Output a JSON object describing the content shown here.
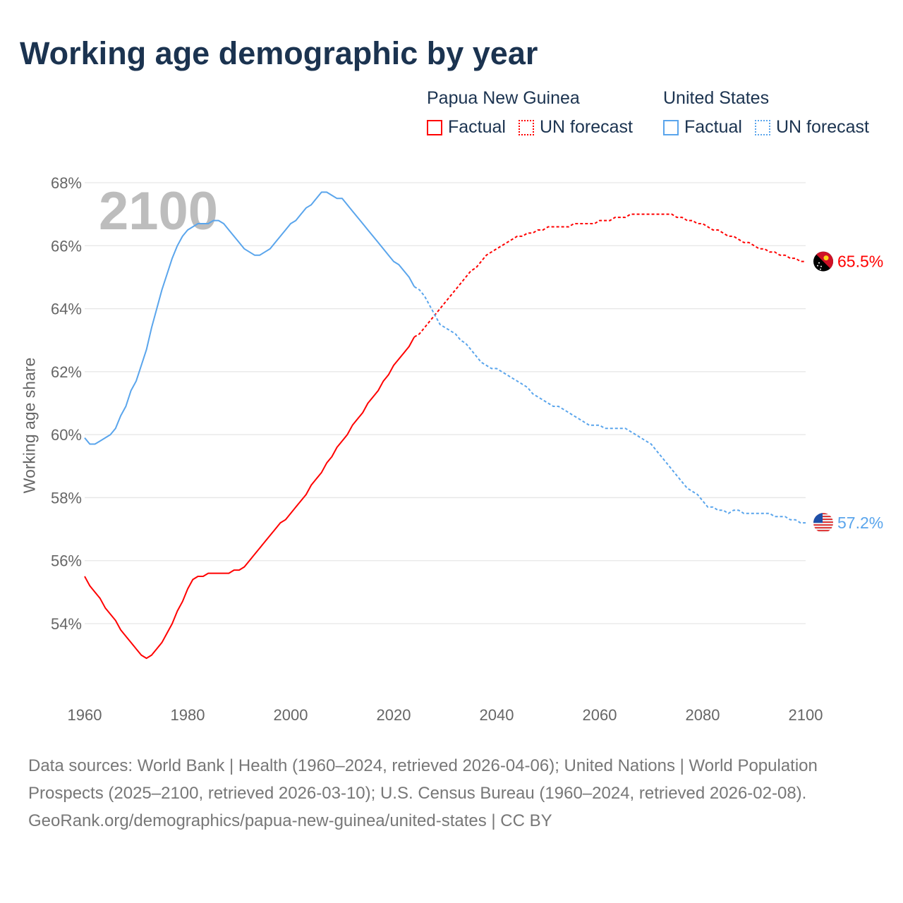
{
  "title": "Working age demographic by year",
  "legend": {
    "groups": [
      {
        "country": "Papua New Guinea",
        "factual": "Factual",
        "forecast": "UN forecast",
        "color": "#ff0000"
      },
      {
        "country": "United States",
        "factual": "Factual",
        "forecast": "UN forecast",
        "color": "#5aa5ec"
      }
    ]
  },
  "chart_data": {
    "type": "line",
    "title": "Working age demographic by year",
    "xlabel": "",
    "ylabel": "Working age share",
    "year_watermark": "2100",
    "xlim": [
      1960,
      2100
    ],
    "ylim": [
      52,
      68
    ],
    "x_ticks": [
      "1960",
      "1980",
      "2000",
      "2020",
      "2040",
      "2060",
      "2080",
      "2100"
    ],
    "y_ticks": [
      "54%",
      "56%",
      "58%",
      "60%",
      "62%",
      "64%",
      "66%",
      "68%"
    ],
    "y_tick_values": [
      54,
      56,
      58,
      60,
      62,
      64,
      66,
      68
    ],
    "grid": true,
    "series": [
      {
        "name": "Papua New Guinea",
        "type": "factual",
        "start_year": 1960,
        "color": "#ff0000",
        "values": [
          55.5,
          55.2,
          55.0,
          54.8,
          54.5,
          54.3,
          54.1,
          53.8,
          53.6,
          53.4,
          53.2,
          53.0,
          52.9,
          53.0,
          53.2,
          53.4,
          53.7,
          54.0,
          54.4,
          54.7,
          55.1,
          55.4,
          55.5,
          55.5,
          55.6,
          55.6,
          55.6,
          55.6,
          55.6,
          55.7,
          55.7,
          55.8,
          56.0,
          56.2,
          56.4,
          56.6,
          56.8,
          57.0,
          57.2,
          57.3,
          57.5,
          57.7,
          57.9,
          58.1,
          58.4,
          58.6,
          58.8,
          59.1,
          59.3,
          59.6,
          59.8,
          60.0,
          60.3,
          60.5,
          60.7,
          61.0,
          61.2,
          61.4,
          61.7,
          61.9,
          62.2,
          62.4,
          62.6,
          62.8,
          63.1
        ]
      },
      {
        "name": "Papua New Guinea",
        "type": "UN forecast",
        "start_year": 2025,
        "color": "#ff0000",
        "values": [
          63.2,
          63.4,
          63.6,
          63.8,
          64.0,
          64.2,
          64.4,
          64.6,
          64.8,
          65.0,
          65.2,
          65.3,
          65.5,
          65.7,
          65.8,
          65.9,
          66.0,
          66.1,
          66.2,
          66.3,
          66.3,
          66.4,
          66.4,
          66.5,
          66.5,
          66.6,
          66.6,
          66.6,
          66.6,
          66.6,
          66.7,
          66.7,
          66.7,
          66.7,
          66.7,
          66.8,
          66.8,
          66.8,
          66.9,
          66.9,
          66.9,
          67.0,
          67.0,
          67.0,
          67.0,
          67.0,
          67.0,
          67.0,
          67.0,
          67.0,
          66.9,
          66.9,
          66.8,
          66.8,
          66.7,
          66.7,
          66.6,
          66.5,
          66.5,
          66.4,
          66.3,
          66.3,
          66.2,
          66.1,
          66.1,
          66.0,
          65.9,
          65.9,
          65.8,
          65.8,
          65.7,
          65.7,
          65.6,
          65.6,
          65.5,
          65.5
        ]
      },
      {
        "name": "United States",
        "type": "factual",
        "start_year": 1960,
        "color": "#5aa5ec",
        "values": [
          59.9,
          59.7,
          59.7,
          59.8,
          59.9,
          60.0,
          60.2,
          60.6,
          60.9,
          61.4,
          61.7,
          62.2,
          62.7,
          63.4,
          64.0,
          64.6,
          65.1,
          65.6,
          66.0,
          66.3,
          66.5,
          66.6,
          66.7,
          66.7,
          66.7,
          66.8,
          66.8,
          66.7,
          66.5,
          66.3,
          66.1,
          65.9,
          65.8,
          65.7,
          65.7,
          65.8,
          65.9,
          66.1,
          66.3,
          66.5,
          66.7,
          66.8,
          67.0,
          67.2,
          67.3,
          67.5,
          67.7,
          67.7,
          67.6,
          67.5,
          67.5,
          67.3,
          67.1,
          66.9,
          66.7,
          66.5,
          66.3,
          66.1,
          65.9,
          65.7,
          65.5,
          65.4,
          65.2,
          65.0,
          64.7
        ]
      },
      {
        "name": "United States",
        "type": "UN forecast",
        "start_year": 2025,
        "color": "#5aa5ec",
        "values": [
          64.6,
          64.4,
          64.1,
          63.8,
          63.5,
          63.4,
          63.3,
          63.2,
          63.0,
          62.9,
          62.7,
          62.5,
          62.3,
          62.2,
          62.1,
          62.1,
          62.0,
          61.9,
          61.8,
          61.7,
          61.6,
          61.5,
          61.3,
          61.2,
          61.1,
          61.0,
          60.9,
          60.9,
          60.8,
          60.7,
          60.6,
          60.5,
          60.4,
          60.3,
          60.3,
          60.3,
          60.2,
          60.2,
          60.2,
          60.2,
          60.2,
          60.1,
          60.0,
          59.9,
          59.8,
          59.7,
          59.5,
          59.3,
          59.1,
          58.9,
          58.7,
          58.5,
          58.3,
          58.2,
          58.1,
          57.9,
          57.7,
          57.7,
          57.6,
          57.6,
          57.5,
          57.6,
          57.6,
          57.5,
          57.5,
          57.5,
          57.5,
          57.5,
          57.5,
          57.4,
          57.4,
          57.4,
          57.3,
          57.3,
          57.2,
          57.2
        ]
      }
    ],
    "end_labels": [
      {
        "country": "Papua New Guinea",
        "flag": "png-flag-icon",
        "value": 65.5,
        "label": "65.5%",
        "color": "#ff0000"
      },
      {
        "country": "United States",
        "flag": "us-flag-icon",
        "value": 57.2,
        "label": "57.2%",
        "color": "#5aa5ec"
      }
    ]
  },
  "footer": {
    "sources": "Data sources: World Bank | Health (1960–2024, retrieved 2026-04-06); United Nations | World Population Prospects (2025–2100, retrieved 2026-03-10); U.S. Census Bureau (1960–2024, retrieved 2026-02-08).",
    "link": "GeoRank.org/demographics/papua-new-guinea/united-states | CC BY"
  }
}
